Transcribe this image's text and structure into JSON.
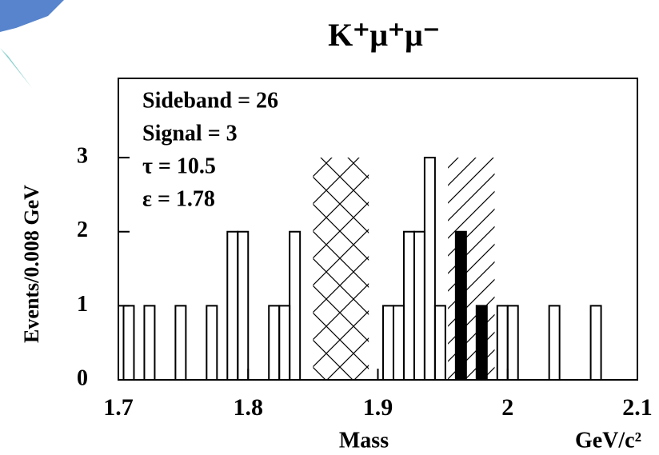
{
  "chart_data": {
    "type": "histogram",
    "title": "K⁺μ⁺μ⁻",
    "xlabel": "Mass",
    "xunit": "GeV/c²",
    "ylabel": "Events/0.008 GeV",
    "annotations": [
      "Sideband = 26",
      "Signal = 3",
      "τ = 10.5",
      "ε = 1.78"
    ],
    "bins": [
      1.704,
      1.712,
      1.72,
      1.728,
      1.736,
      1.744,
      1.752,
      1.76,
      1.768,
      1.776,
      1.784,
      1.792,
      1.8,
      1.808,
      1.816,
      1.824,
      1.832,
      1.84,
      1.848,
      1.856,
      1.864,
      1.872,
      1.88,
      1.888,
      1.896,
      1.904,
      1.912,
      1.92,
      1.928,
      1.936,
      1.944,
      1.952,
      1.96,
      1.968,
      1.976,
      1.984,
      1.992,
      2.0,
      2.008,
      2.016,
      2.024,
      2.032,
      2.04,
      2.048,
      2.056,
      2.064,
      2.072
    ],
    "series": [
      {
        "color": "#000000",
        "fill": false,
        "values": [
          1,
          0,
          1,
          0,
          0,
          1,
          0,
          0,
          1,
          0,
          2,
          2,
          0,
          0,
          1,
          1,
          2,
          0,
          0,
          0,
          0,
          0,
          0,
          0,
          0,
          1,
          1,
          2,
          2,
          3,
          1,
          0,
          0,
          0,
          0,
          0,
          1,
          1,
          0,
          0,
          0,
          1,
          0,
          0,
          0,
          1
        ]
      },
      {
        "color": "#000000",
        "fill": true,
        "values": [
          0,
          0,
          0,
          0,
          0,
          0,
          0,
          0,
          0,
          0,
          0,
          0,
          0,
          0,
          0,
          0,
          0,
          0,
          0,
          0,
          0,
          0,
          0,
          0,
          0,
          0,
          0,
          0,
          0,
          0,
          0,
          0,
          2,
          0,
          1,
          0,
          0,
          0,
          0,
          0,
          0,
          0,
          0,
          0,
          0,
          0
        ]
      }
    ],
    "regions": [
      {
        "xrange": [
          1.85,
          1.893
        ],
        "pattern": "cross"
      },
      {
        "xrange": [
          1.954,
          1.99
        ],
        "pattern": "diagonal"
      }
    ],
    "xlim": [
      1.7,
      2.1
    ],
    "xticks": [
      1.7,
      1.8,
      1.9,
      2,
      2.1
    ],
    "ylim": [
      0,
      4.07
    ],
    "yticks": [
      0,
      1,
      2,
      3
    ]
  }
}
